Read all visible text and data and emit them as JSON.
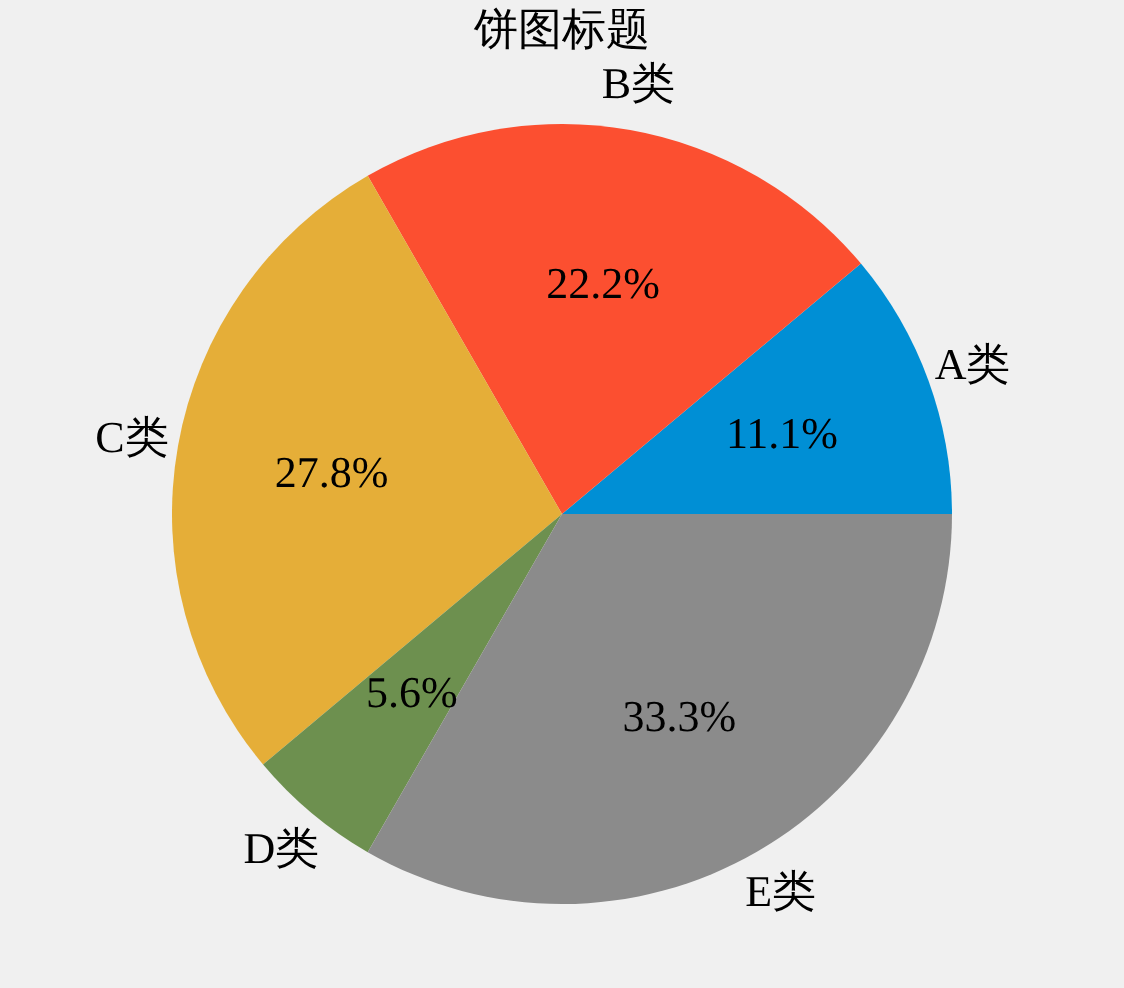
{
  "chart_data": {
    "type": "pie",
    "title": "饼图标题",
    "categories": [
      "A类",
      "B类",
      "C类",
      "D类",
      "E类"
    ],
    "values": [
      11.1,
      22.2,
      27.8,
      5.6,
      33.3
    ],
    "value_labels": [
      "11.1%",
      "22.2%",
      "27.8%",
      "5.6%",
      "33.3%"
    ],
    "colors": [
      "#008fd5",
      "#fc4f30",
      "#e5ae38",
      "#6d904f",
      "#8b8b8b"
    ],
    "legend": false
  }
}
